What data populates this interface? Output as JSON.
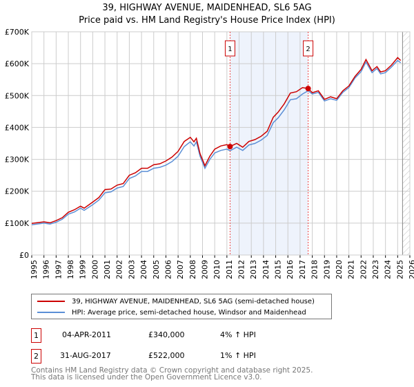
{
  "title": "39, HIGHWAY AVENUE, MAIDENHEAD, SL6 5AG",
  "subtitle": "Price paid vs. HM Land Registry's House Price Index (HPI)",
  "colors": {
    "property": "#cc0000",
    "hpi": "#5b8fd6",
    "shade": "#eef3fc"
  },
  "chart_data": {
    "type": "line",
    "xlim": [
      1995,
      2026
    ],
    "ylim": [
      0,
      700000
    ],
    "yticks": [
      {
        "v": 0,
        "label": "£0"
      },
      {
        "v": 100000,
        "label": "£100K"
      },
      {
        "v": 200000,
        "label": "£200K"
      },
      {
        "v": 300000,
        "label": "£300K"
      },
      {
        "v": 400000,
        "label": "£400K"
      },
      {
        "v": 500000,
        "label": "£500K"
      },
      {
        "v": 600000,
        "label": "£600K"
      },
      {
        "v": 700000,
        "label": "£700K"
      }
    ],
    "xticks": [
      "1995",
      "1996",
      "1997",
      "1998",
      "1999",
      "2000",
      "2001",
      "2002",
      "2003",
      "2004",
      "2005",
      "2006",
      "2007",
      "2008",
      "2009",
      "2010",
      "2011",
      "2012",
      "2013",
      "2014",
      "2015",
      "2016",
      "2017",
      "2018",
      "2019",
      "2020",
      "2021",
      "2022",
      "2023",
      "2024",
      "2025",
      "2026"
    ],
    "grid": true,
    "hpi_x": [
      1995,
      1996,
      1996.5,
      1997,
      1997.5,
      1998,
      1998.5,
      1999,
      1999.3,
      2000,
      2000.5,
      2001,
      2001.5,
      2002,
      2002.5,
      2003,
      2003.5,
      2004,
      2004.5,
      2005,
      2005.5,
      2006,
      2006.5,
      2007,
      2007.5,
      2008,
      2008.3,
      2008.5,
      2008.8,
      2009.2,
      2009.6,
      2010,
      2010.5,
      2011,
      2011.26,
      2011.8,
      2012.3,
      2012.8,
      2013.3,
      2013.8,
      2014.3,
      2014.8,
      2015.2,
      2015.7,
      2016.2,
      2016.7,
      2017.2,
      2017.66,
      2018,
      2018.5,
      2019,
      2019.5,
      2020,
      2020.5,
      2021,
      2021.5,
      2022,
      2022.4,
      2022.9,
      2023.3,
      2023.6,
      2024,
      2024.5,
      2025,
      2025.25
    ],
    "series": [
      {
        "name": "39, HIGHWAY AVENUE, MAIDENHEAD, SL6 5AG (semi-detached house)",
        "color": "#cc0000",
        "values": [
          99000,
          104000,
          101000,
          108000,
          117000,
          134000,
          142000,
          153000,
          147000,
          166000,
          180000,
          205000,
          207000,
          219000,
          224000,
          250000,
          258000,
          272000,
          272000,
          283000,
          286000,
          295000,
          307000,
          325000,
          356000,
          369000,
          355000,
          366000,
          318000,
          280000,
          310000,
          332000,
          342000,
          346000,
          340000,
          350000,
          338000,
          356000,
          362000,
          372000,
          388000,
          432000,
          448000,
          474000,
          508000,
          512000,
          525000,
          522000,
          509000,
          515000,
          488000,
          496000,
          490000,
          515000,
          530000,
          560000,
          582000,
          613000,
          578000,
          591000,
          574000,
          578000,
          596000,
          619000,
          610000
        ]
      },
      {
        "name": "HPI: Average price, semi-detached house, Windsor and Maidenhead",
        "color": "#5b8fd6",
        "values": [
          95000,
          100000,
          97000,
          103000,
          112000,
          128000,
          135000,
          147000,
          140000,
          158000,
          172000,
          195000,
          198000,
          210000,
          215000,
          240000,
          248000,
          262000,
          262000,
          272000,
          275000,
          282000,
          293000,
          310000,
          340000,
          355000,
          342000,
          355000,
          310000,
          272000,
          300000,
          320000,
          328000,
          332000,
          327000,
          338000,
          328000,
          345000,
          350000,
          360000,
          375000,
          415000,
          430000,
          455000,
          487000,
          490000,
          505000,
          515000,
          505000,
          510000,
          483000,
          490000,
          485000,
          510000,
          525000,
          555000,
          575000,
          605000,
          572000,
          585000,
          568000,
          572000,
          590000,
          610000,
          603000
        ]
      }
    ],
    "sales": [
      {
        "id": "1",
        "x": 2011.26,
        "value": 340000
      },
      {
        "id": "2",
        "x": 2017.66,
        "value": 522000
      }
    ],
    "forecast_start": 2025.4
  },
  "legend": {
    "property": "39, HIGHWAY AVENUE, MAIDENHEAD, SL6 5AG (semi-detached house)",
    "hpi": "HPI: Average price, semi-detached house, Windsor and Maidenhead"
  },
  "transactions": [
    {
      "id": "1",
      "date": "04-APR-2011",
      "price": "£340,000",
      "hpi": "4% ↑ HPI"
    },
    {
      "id": "2",
      "date": "31-AUG-2017",
      "price": "£522,000",
      "hpi": "1% ↑ HPI"
    }
  ],
  "footer": {
    "line1": "Contains HM Land Registry data © Crown copyright and database right 2025.",
    "line2": "This data is licensed under the Open Government Licence v3.0."
  }
}
